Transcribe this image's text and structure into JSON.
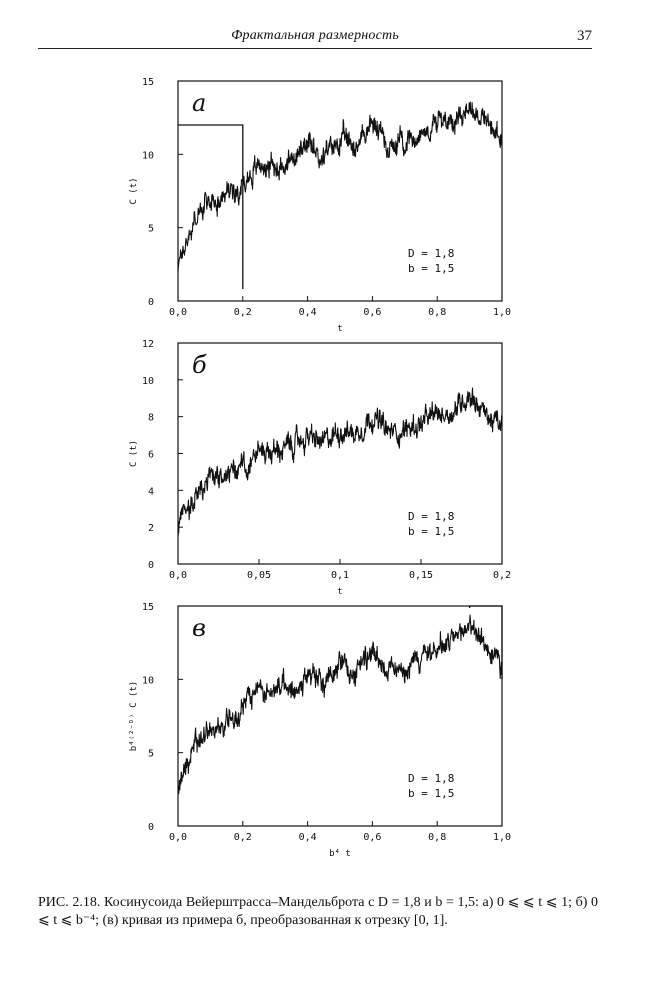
{
  "header": {
    "running_title": "Фрактальная размерность",
    "page_number": "37"
  },
  "panels": [
    {
      "letter": "a",
      "ylabel": "C (t)",
      "xlabel": "t",
      "params": [
        "D = 1,8",
        "b = 1,5"
      ],
      "xticks": [
        "0,0",
        "0,2",
        "0,4",
        "0,6",
        "0,8",
        "1,0"
      ],
      "yticks": [
        "0",
        "5",
        "10",
        "15"
      ]
    },
    {
      "letter": "б",
      "ylabel": "C (t)",
      "xlabel": "t",
      "params": [
        "D = 1,8",
        "b = 1,5"
      ],
      "xticks": [
        "0,0",
        "0,05",
        "0,1",
        "0,15",
        "0,2"
      ],
      "yticks": [
        "0",
        "2",
        "4",
        "6",
        "8",
        "10",
        "12"
      ]
    },
    {
      "letter": "в",
      "ylabel": "b⁴⁽²⁻ᴰ⁾ C (t)",
      "xlabel": "b⁴ t",
      "params": [
        "D = 1,8",
        "b = 1,5"
      ],
      "xticks": [
        "0,0",
        "0,2",
        "0,4",
        "0,6",
        "0,8",
        "1,0"
      ],
      "yticks": [
        "0",
        "5",
        "10",
        "15"
      ]
    }
  ],
  "chart_data": [
    {
      "type": "line",
      "xlim": [
        0,
        1
      ],
      "ylim": [
        0,
        15
      ],
      "x": [
        0,
        0.05,
        0.1,
        0.15,
        0.2,
        0.25,
        0.3,
        0.35,
        0.4,
        0.45,
        0.5,
        0.55,
        0.6,
        0.65,
        0.7,
        0.75,
        0.8,
        0.85,
        0.9,
        0.95,
        1.0
      ],
      "y": [
        2.5,
        5.5,
        6.8,
        7.4,
        8.0,
        9.3,
        9.2,
        9.6,
        10.4,
        9.8,
        11.0,
        10.6,
        12.2,
        10.6,
        11.0,
        11.4,
        12.2,
        12.4,
        13.4,
        12.2,
        10.8
      ],
      "guide_box": {
        "x": [
          0,
          0.2
        ],
        "y_top": 12
      }
    },
    {
      "type": "line",
      "xlim": [
        0,
        0.2
      ],
      "ylim": [
        0,
        12
      ],
      "x": [
        0,
        0.01,
        0.02,
        0.03,
        0.04,
        0.05,
        0.06,
        0.07,
        0.08,
        0.09,
        0.1,
        0.11,
        0.12,
        0.13,
        0.14,
        0.15,
        0.16,
        0.17,
        0.18,
        0.19,
        0.2
      ],
      "y": [
        1.8,
        3.6,
        4.4,
        4.9,
        5.3,
        6.2,
        6.1,
        6.4,
        6.9,
        6.5,
        7.3,
        7.1,
        8.1,
        7.1,
        7.3,
        7.6,
        8.1,
        8.3,
        9.3,
        8.1,
        7.4
      ]
    },
    {
      "type": "line",
      "xlim": [
        0,
        1
      ],
      "ylim": [
        0,
        15
      ],
      "x": [
        0,
        0.05,
        0.1,
        0.15,
        0.2,
        0.25,
        0.3,
        0.35,
        0.4,
        0.45,
        0.5,
        0.55,
        0.6,
        0.65,
        0.7,
        0.75,
        0.8,
        0.85,
        0.9,
        0.95,
        1.0
      ],
      "y": [
        2.7,
        5.5,
        6.6,
        7.3,
        7.9,
        9.3,
        9.1,
        9.6,
        10.3,
        9.8,
        11.0,
        10.6,
        12.1,
        10.6,
        11.0,
        11.4,
        12.2,
        12.4,
        13.9,
        12.2,
        10.8
      ],
      "guide_box": {
        "x": [
          0.9,
          1.0
        ],
        "y_top": 15
      }
    }
  ],
  "caption": {
    "label": "РИС. 2.18.",
    "text": "Косинусоида Вейерштрасса–Мандельброта с D = 1,8 и b = 1,5: а) 0 ⩽ ⩽ t ⩽ 1; б) 0 ⩽ t ⩽ b⁻⁴; (в) кривая из примера б, преобразованная к отрезку [0, 1]."
  }
}
